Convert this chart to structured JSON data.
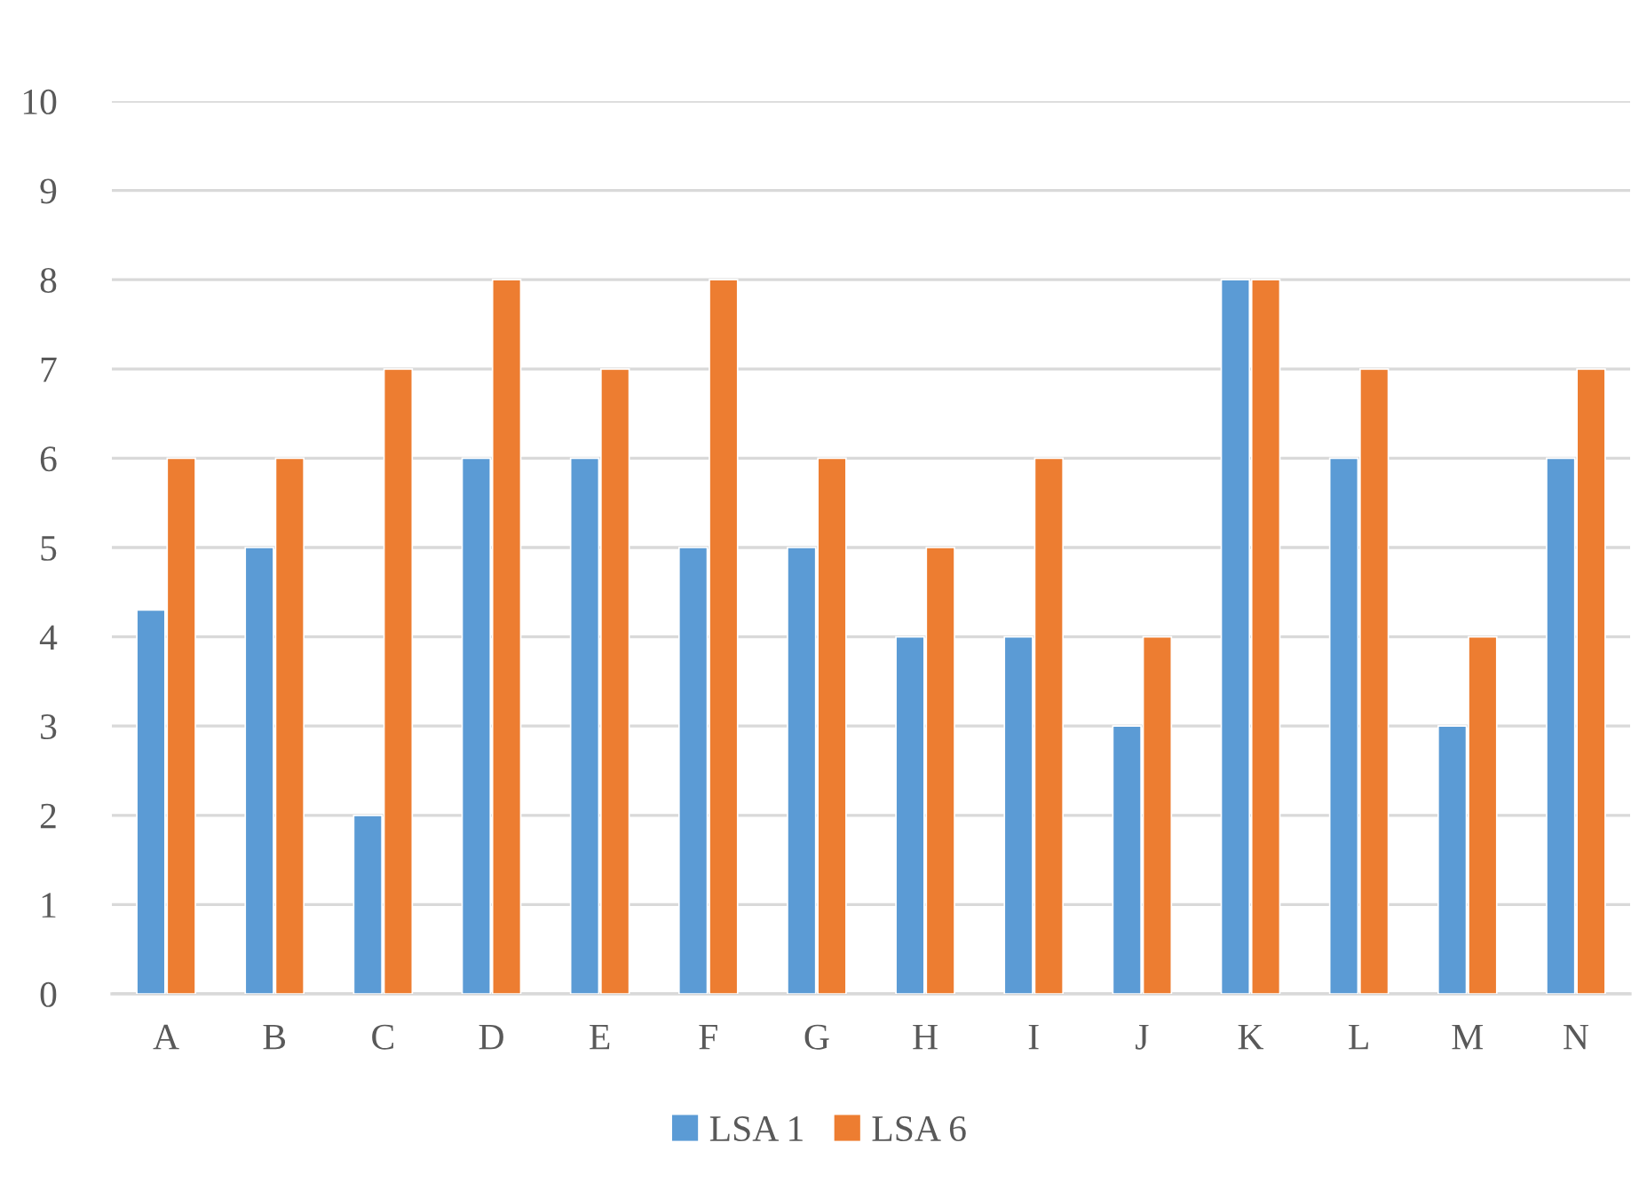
{
  "chart_data": {
    "type": "bar",
    "categories": [
      "A",
      "B",
      "C",
      "D",
      "E",
      "F",
      "G",
      "H",
      "I",
      "J",
      "K",
      "L",
      "M",
      "N"
    ],
    "series": [
      {
        "name": "LSA 1",
        "color": "#5b9bd5",
        "values": [
          4.3,
          5,
          2,
          6,
          6,
          5,
          5,
          4,
          4,
          3,
          8,
          6,
          3,
          6
        ]
      },
      {
        "name": "LSA 6",
        "color": "#ed7d31",
        "values": [
          6,
          6,
          7,
          8,
          7,
          8,
          6,
          5,
          6,
          4,
          8,
          7,
          4,
          7
        ]
      }
    ],
    "ylim": [
      0,
      10
    ],
    "yticks": [
      0,
      1,
      2,
      3,
      4,
      5,
      6,
      7,
      8,
      9,
      10
    ],
    "grid": "y",
    "legend": "bottom"
  }
}
